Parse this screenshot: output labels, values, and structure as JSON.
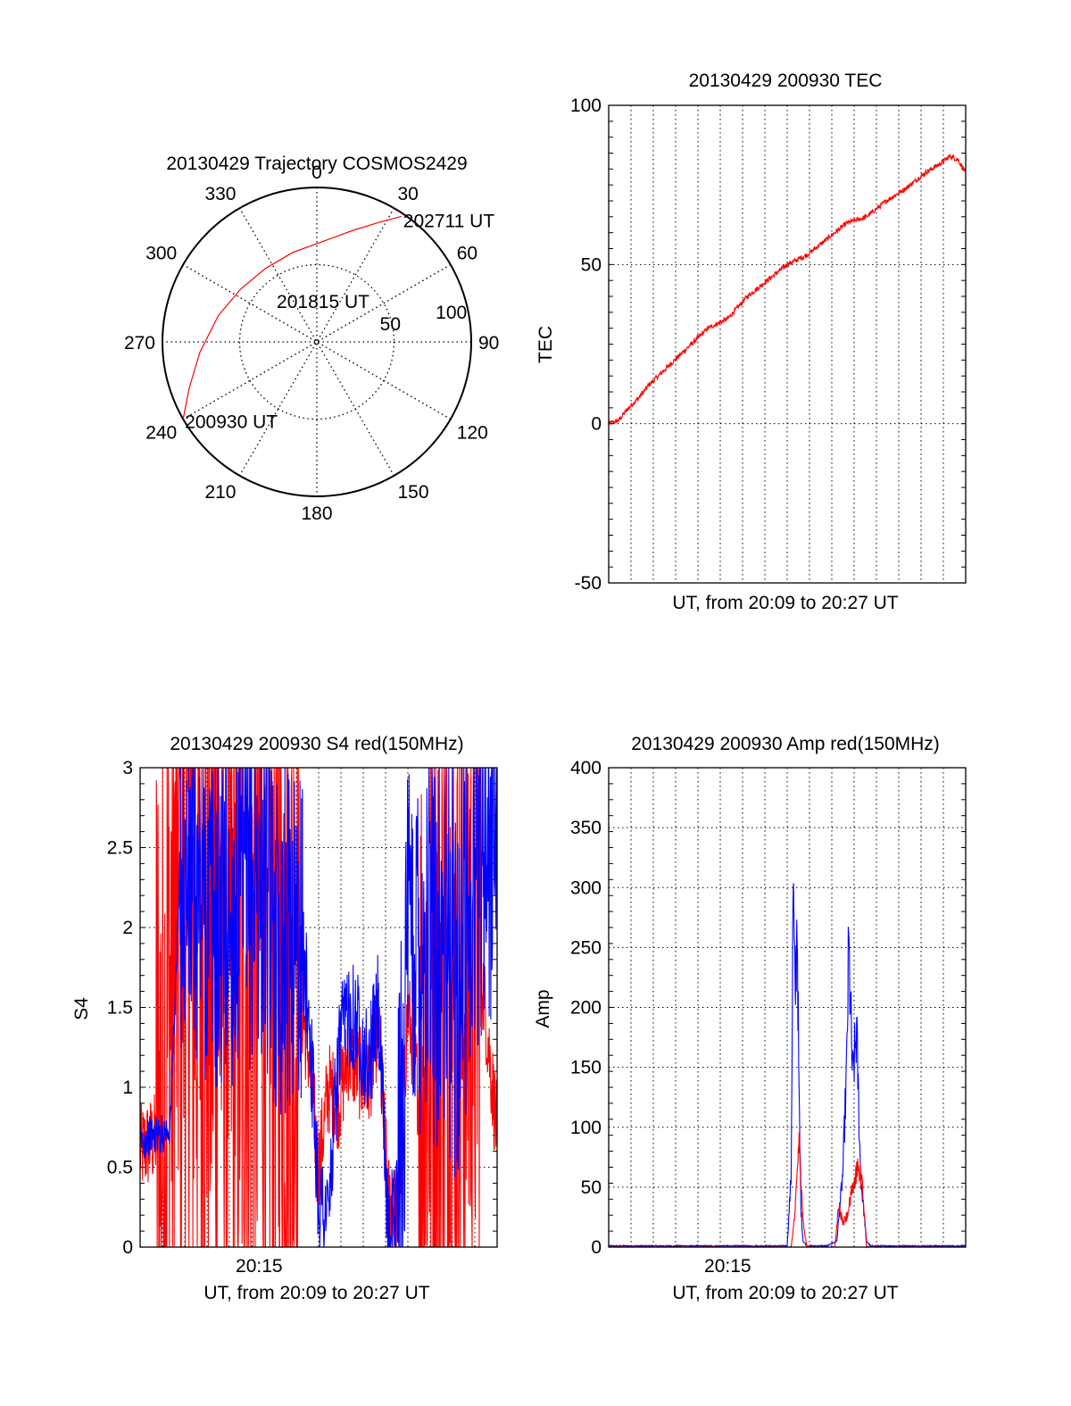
{
  "colors": {
    "red": "#ff0000",
    "blue": "#0000ff",
    "axis": "#000000",
    "grid": "#000000"
  },
  "chart_data": [
    {
      "id": "trajectory",
      "type": "polar",
      "title": "20130429 Trajectory COSMOS2429",
      "angle_labels": [
        {
          "angle": 0,
          "text": "0"
        },
        {
          "angle": 30,
          "text": "30"
        },
        {
          "angle": 60,
          "text": "60"
        },
        {
          "angle": 90,
          "text": "90"
        },
        {
          "angle": 120,
          "text": "120"
        },
        {
          "angle": 150,
          "text": "150"
        },
        {
          "angle": 180,
          "text": "180"
        },
        {
          "angle": 210,
          "text": "210"
        },
        {
          "angle": 240,
          "text": "240"
        },
        {
          "angle": 270,
          "text": "270"
        },
        {
          "angle": 300,
          "text": "300"
        },
        {
          "angle": 330,
          "text": "330"
        }
      ],
      "ring_labels": [
        {
          "r": 50,
          "text": "50"
        },
        {
          "r": 100,
          "text": "100"
        }
      ],
      "r_max": 100,
      "track": {
        "color": "#ff0000",
        "points": [
          [
            240,
            100
          ],
          [
            250,
            88
          ],
          [
            265,
            76
          ],
          [
            285,
            66
          ],
          [
            305,
            60
          ],
          [
            325,
            58
          ],
          [
            345,
            60
          ],
          [
            5,
            66
          ],
          [
            18,
            76
          ],
          [
            28,
            88
          ],
          [
            34,
            98
          ]
        ]
      },
      "annotations": [
        {
          "text": "202711 UT",
          "at_point": "end"
        },
        {
          "text": "201815 UT",
          "at_point": "mid"
        },
        {
          "text": "200930 UT",
          "at_point": "start"
        }
      ]
    },
    {
      "id": "tec",
      "type": "line",
      "title": "20130429 200930 TEC",
      "xlabel": "UT, from 20:09 to 20:27 UT",
      "ylabel": "TEC",
      "xlim": [
        0,
        18
      ],
      "ylim": [
        -50,
        100
      ],
      "yticks": [
        -50,
        0,
        50,
        100
      ],
      "grid": true,
      "series": [
        {
          "color": "#ff0000",
          "x": [
            0,
            0.5,
            1,
            1.5,
            2,
            2.5,
            3,
            4,
            5,
            6,
            7,
            8,
            9,
            10,
            11,
            12,
            13,
            14,
            15,
            16,
            16.8,
            17.2,
            17.6,
            18
          ],
          "y": [
            0,
            1,
            5,
            8,
            12,
            15,
            18,
            24,
            30,
            33,
            40,
            45,
            50,
            53,
            58,
            63,
            65,
            70,
            74,
            79,
            82,
            84,
            83,
            79
          ]
        }
      ]
    },
    {
      "id": "s4",
      "type": "line",
      "title": "20130429 200930 S4 red(150MHz)",
      "xlabel": "UT, from 20:09 to 20:27 UT",
      "ylabel": "S4",
      "xlim": [
        0,
        18
      ],
      "ylim": [
        0,
        3
      ],
      "yticks": [
        0,
        0.5,
        1,
        1.5,
        2,
        2.5,
        3
      ],
      "ytick_labels": [
        "0",
        "0.5",
        "1",
        "1.5",
        "2",
        "2.5",
        "3"
      ],
      "xticks": [
        {
          "x": 6,
          "text": "20:15"
        }
      ],
      "grid": true,
      "series": [
        {
          "color": "#ff0000",
          "x": [
            0,
            1,
            1.5,
            2,
            3,
            4,
            5,
            6,
            7,
            8,
            8.5,
            9,
            9.5,
            10,
            10.5,
            11,
            11.5,
            12,
            12.5,
            13,
            13.5,
            14,
            15,
            16,
            17,
            18
          ],
          "y": [
            0.6,
            0.7,
            1.5,
            2.5,
            2.0,
            2.0,
            1.8,
            2.0,
            1.8,
            1.6,
            1.2,
            0.5,
            1.0,
            0.9,
            1.2,
            1.1,
            1.0,
            1.4,
            0.3,
            0.2,
            1.5,
            1.0,
            1.6,
            1.4,
            2.0,
            0.7
          ]
        },
        {
          "color": "#0000ff",
          "x": [
            0,
            0.5,
            1,
            1.5,
            2,
            3,
            4,
            5,
            6,
            7,
            8,
            8.5,
            9,
            9.5,
            10,
            10.5,
            11,
            11.5,
            12,
            12.5,
            13,
            13.5,
            14,
            15,
            16,
            17,
            18
          ],
          "y": [
            0.65,
            0.7,
            0.7,
            0.75,
            2.3,
            2.2,
            2.0,
            2.1,
            2.3,
            1.9,
            2.0,
            1.5,
            0.3,
            0.2,
            1.2,
            1.5,
            1.4,
            1.1,
            1.5,
            0.1,
            0.3,
            1.8,
            2.0,
            1.9,
            1.7,
            2.5,
            2.8
          ]
        }
      ]
    },
    {
      "id": "amp",
      "type": "line",
      "title": "20130429 200930 Amp red(150MHz)",
      "xlabel": "UT, from 20:09 to 20:27 UT",
      "ylabel": "Amp",
      "xlim": [
        0,
        18
      ],
      "ylim": [
        0,
        400
      ],
      "yticks": [
        0,
        50,
        100,
        150,
        200,
        250,
        300,
        350,
        400
      ],
      "xticks": [
        {
          "x": 6,
          "text": "20:15"
        }
      ],
      "grid": true,
      "series": [
        {
          "color": "#0000ff",
          "x": [
            0,
            9,
            9.2,
            9.3,
            9.4,
            9.5,
            9.6,
            9.7,
            9.8,
            10.0,
            10.3,
            11.0,
            11.5,
            11.8,
            12.0,
            12.1,
            12.3,
            12.5,
            12.7,
            13.0,
            13.2,
            18
          ],
          "y": [
            1,
            1,
            60,
            300,
            200,
            280,
            120,
            30,
            5,
            1,
            1,
            1,
            5,
            60,
            150,
            250,
            140,
            180,
            60,
            5,
            1,
            1
          ]
        },
        {
          "color": "#ff0000",
          "x": [
            0,
            9.2,
            9.4,
            9.6,
            9.8,
            10.0,
            11.4,
            11.6,
            11.8,
            12.0,
            12.2,
            12.4,
            12.6,
            12.8,
            13.0,
            18
          ],
          "y": [
            0,
            0,
            30,
            90,
            20,
            0,
            0,
            35,
            20,
            25,
            40,
            55,
            70,
            50,
            0,
            0
          ]
        }
      ]
    }
  ]
}
